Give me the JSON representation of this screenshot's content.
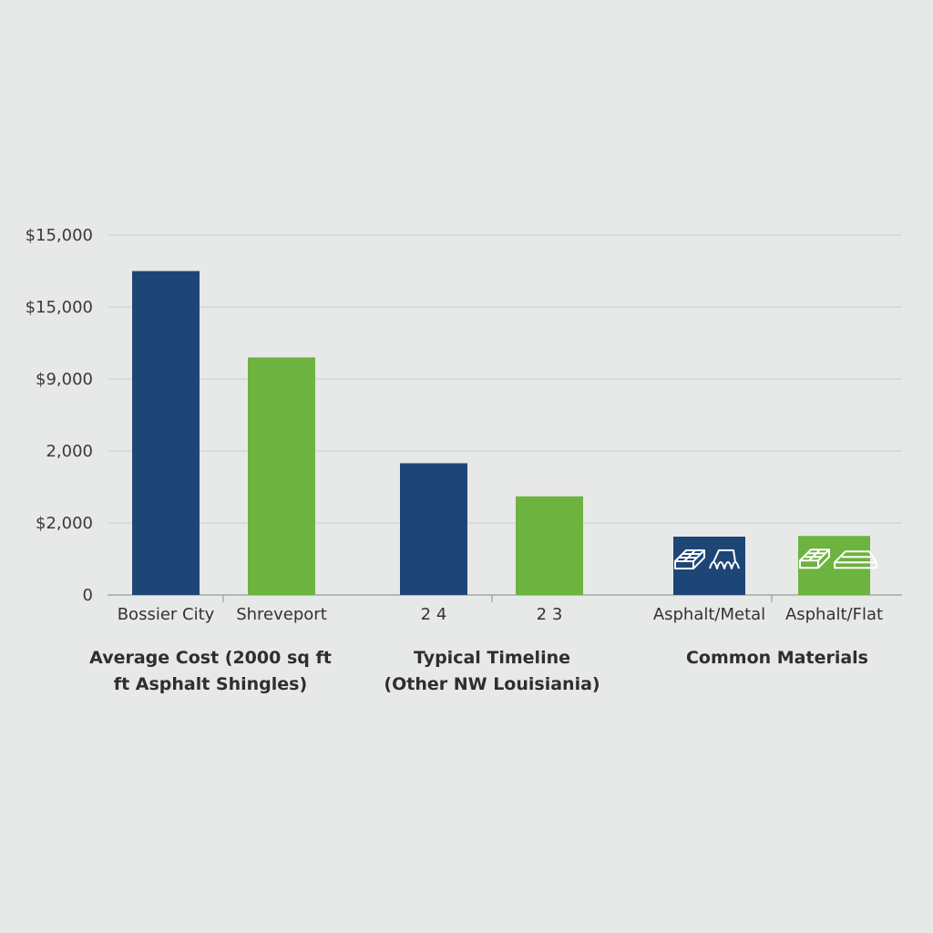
{
  "chart_data": {
    "type": "bar",
    "y_tick_labels": [
      "0",
      "$2,000",
      "2,000",
      "$9,000",
      "$15,000",
      "$15,000"
    ],
    "grid": true,
    "groups": [
      {
        "title_lines": [
          "Average Cost (2000 sq ft",
          "ft Asphalt Shingles)"
        ],
        "bars": [
          {
            "category": "Bossier City",
            "value": 4.5,
            "color": "#1d4677"
          },
          {
            "category": "Shreveport",
            "value": 3.3,
            "color": "#6db33f"
          }
        ]
      },
      {
        "title_lines": [
          "Typical Timeline",
          "(Other NW Louisiania)"
        ],
        "bars": [
          {
            "category": "2 4",
            "value": 1.83,
            "color": "#1d4677"
          },
          {
            "category": "2 3",
            "value": 1.37,
            "color": "#6db33f"
          }
        ]
      },
      {
        "title_lines": [
          "Common Materials"
        ],
        "bars": [
          {
            "category": "Asphalt/Metal",
            "value": 0.81,
            "color": "#1d4677",
            "icons": [
              "tile-panel-icon",
              "metal-roof-icon"
            ]
          },
          {
            "category": "Asphalt/Flat",
            "value": 0.82,
            "color": "#6db33f",
            "icons": [
              "tile-panel-icon",
              "flat-roof-icon"
            ]
          }
        ]
      }
    ],
    "ylim": [
      0,
      5
    ]
  }
}
